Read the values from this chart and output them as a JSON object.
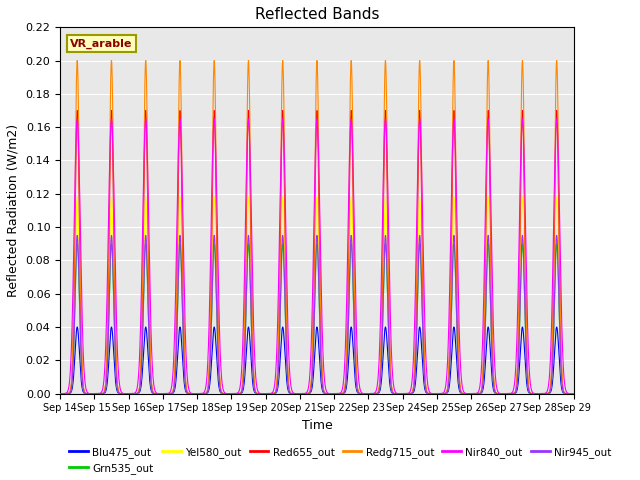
{
  "title": "Reflected Bands",
  "xlabel": "Time",
  "ylabel": "Reflected Radiation (W/m2)",
  "annotation": "VR_arable",
  "ylim": [
    0,
    0.22
  ],
  "n_cycles": 15,
  "start_day": 14,
  "background_color": "#e8e8e8",
  "grid_color": "#ffffff",
  "series": [
    {
      "name": "Blu475_out",
      "color": "#0000FF",
      "peak": 0.04
    },
    {
      "name": "Grn535_out",
      "color": "#00CC00",
      "peak": 0.09
    },
    {
      "name": "Yel580_out",
      "color": "#FFFF00",
      "peak": 0.118
    },
    {
      "name": "Red655_out",
      "color": "#FF0000",
      "peak": 0.17
    },
    {
      "name": "Redg715_out",
      "color": "#FF8800",
      "peak": 0.2
    },
    {
      "name": "Nir840_out",
      "color": "#FF00FF",
      "peak": 0.165
    },
    {
      "name": "Nir945_out",
      "color": "#9933FF",
      "peak": 0.095
    }
  ]
}
